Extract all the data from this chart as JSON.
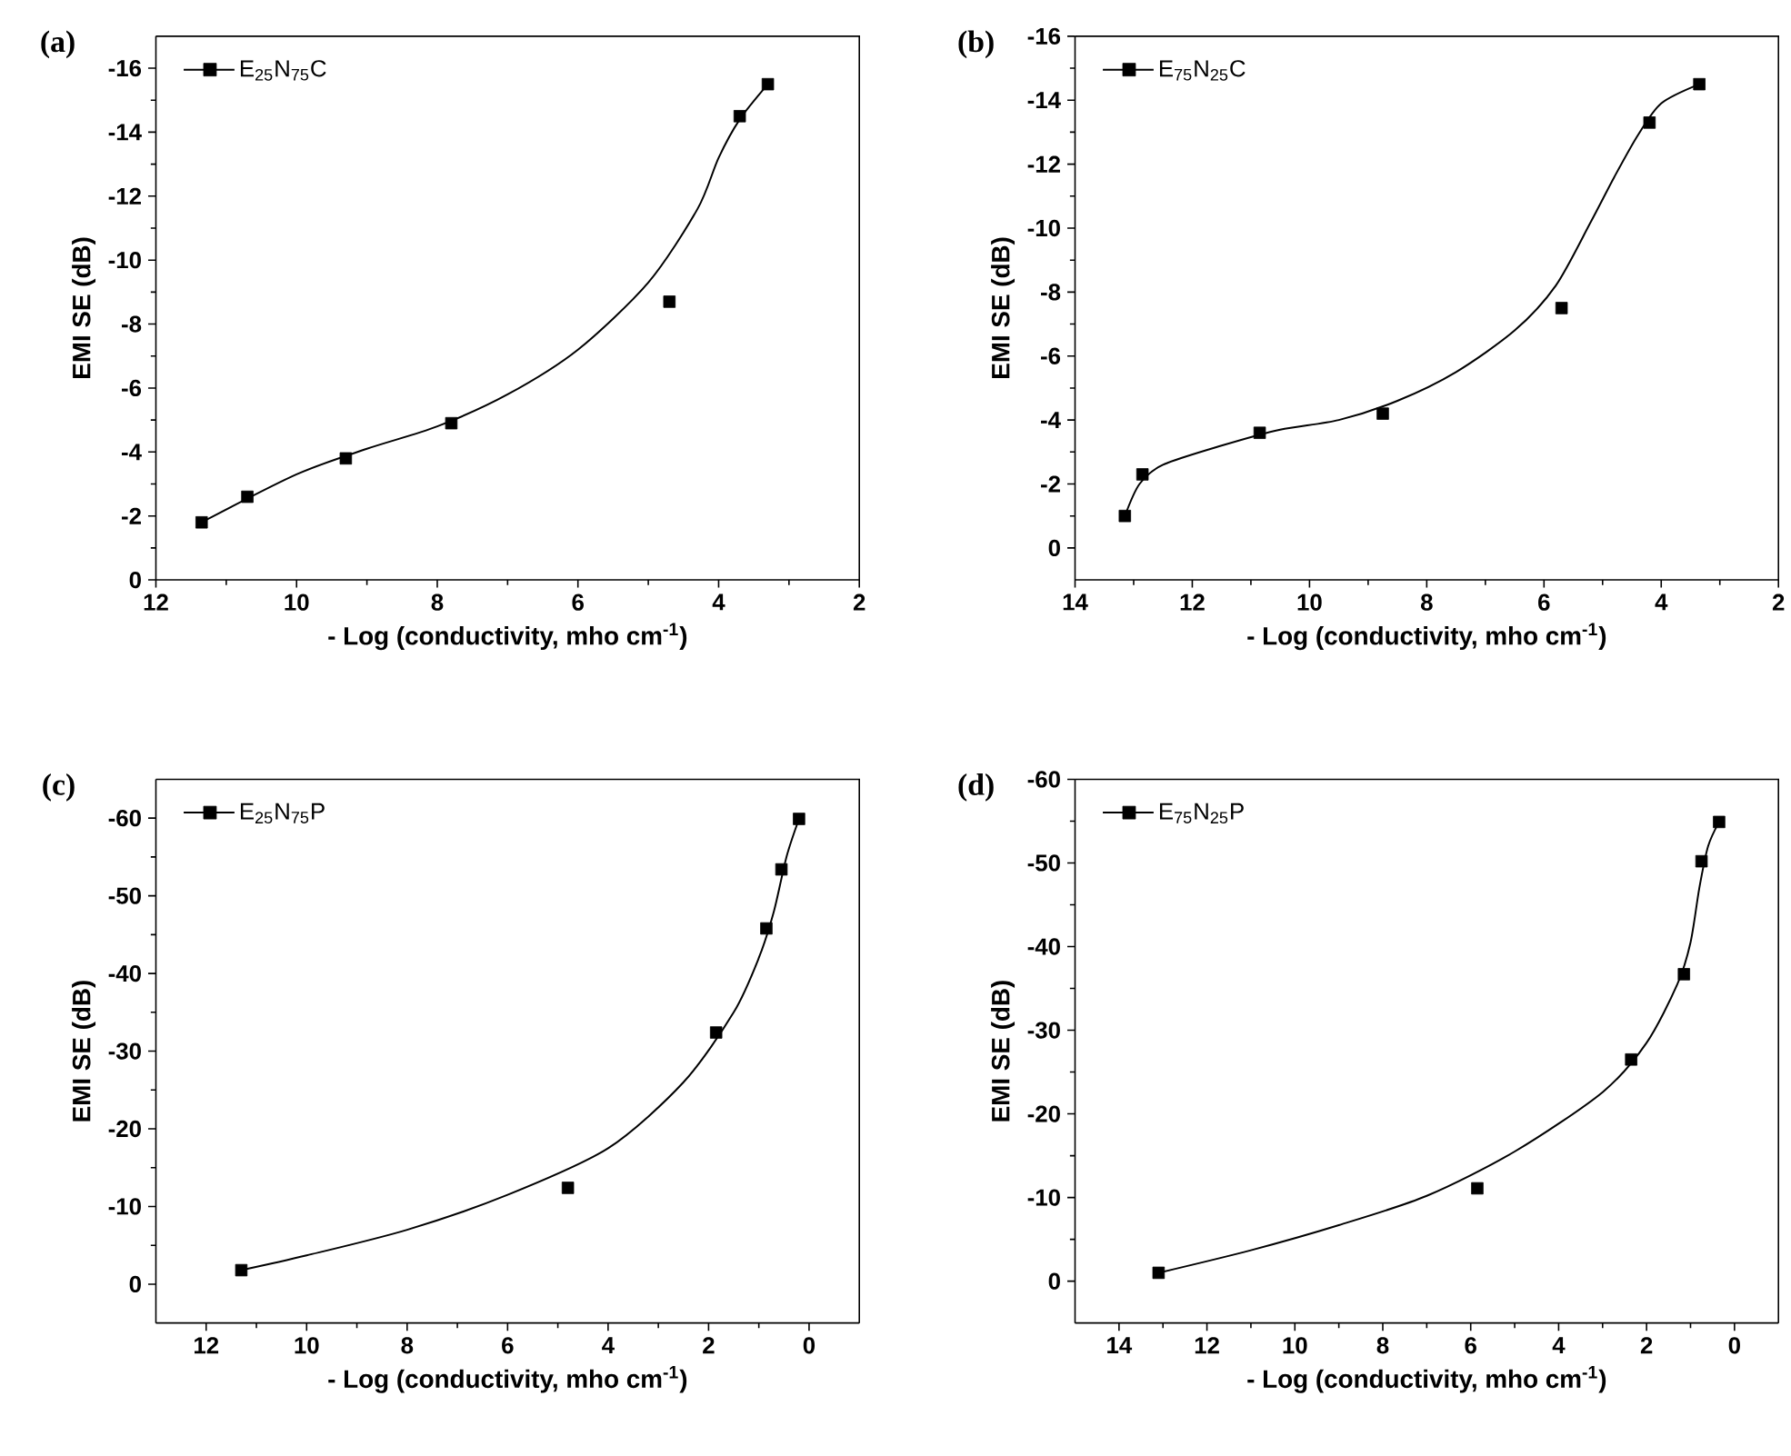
{
  "chart_data": [
    {
      "type": "scatter",
      "title": "(a)",
      "xlabel": "- Log (conductivity, mho cm$^{-1}$)",
      "ylabel": "EMI SE (dB)",
      "xlim": [
        12,
        2
      ],
      "ylim": [
        0,
        -17
      ],
      "xticks": [
        12,
        10,
        8,
        6,
        4,
        2
      ],
      "yticks": [
        0,
        -2,
        -4,
        -6,
        -8,
        -10,
        -12,
        -14,
        -16
      ],
      "legend": "top left",
      "series": [
        {
          "name": "E$_{25}$N$_{75}$C",
          "marker": "square",
          "color": "#000000",
          "x": [
            11.35,
            10.7,
            9.3,
            7.8,
            4.7,
            3.7,
            3.3
          ],
          "values": [
            -1.8,
            -2.6,
            -3.8,
            -4.9,
            -8.7,
            -14.5,
            -15.5
          ]
        },
        {
          "type": "line",
          "marker": "none",
          "color": "#000000",
          "x": [
            11.35,
            10,
            9,
            8,
            7,
            6,
            5,
            4.3,
            4,
            3.7,
            3.3
          ],
          "values": [
            -1.8,
            -3.3,
            -4.1,
            -4.8,
            -5.8,
            -7.2,
            -9.3,
            -11.6,
            -13.2,
            -14.4,
            -15.5
          ]
        }
      ]
    },
    {
      "type": "scatter",
      "title": "(b)",
      "xlabel": "- Log (conductivity, mho cm$^{-1}$)",
      "ylabel": "EMI SE (dB)",
      "xlim": [
        14,
        2
      ],
      "ylim": [
        1,
        -16
      ],
      "xticks": [
        14,
        12,
        10,
        8,
        6,
        4,
        2
      ],
      "yticks": [
        0,
        -2,
        -4,
        -6,
        -8,
        -10,
        -12,
        -14,
        -16
      ],
      "legend": "top left",
      "series": [
        {
          "name": "E$_{75}$N$_{25}$C",
          "marker": "square",
          "color": "#000000",
          "x": [
            13.15,
            12.85,
            10.85,
            8.75,
            5.7,
            4.2,
            3.35
          ],
          "values": [
            -1.0,
            -2.3,
            -3.6,
            -4.2,
            -7.5,
            -13.3,
            -14.5
          ]
        },
        {
          "type": "line",
          "marker": "none",
          "color": "#000000",
          "x": [
            13.15,
            12.9,
            12.5,
            11.5,
            10.5,
            9.5,
            8.5,
            7.5,
            6.5,
            5.8,
            5.2,
            4.8,
            4.4,
            4,
            3.35
          ],
          "values": [
            -1.0,
            -2.0,
            -2.6,
            -3.2,
            -3.7,
            -4.0,
            -4.6,
            -5.5,
            -6.8,
            -8.2,
            -10.2,
            -11.6,
            -12.9,
            -13.9,
            -14.5
          ]
        }
      ]
    },
    {
      "type": "scatter",
      "title": "(c)",
      "xlabel": "- Log (conductivity, mho cm$^{-1}$)",
      "ylabel": "EMI SE (dB)",
      "xlim": [
        13,
        -1
      ],
      "ylim": [
        5,
        -65
      ],
      "xticks": [
        12,
        10,
        8,
        6,
        4,
        2,
        0
      ],
      "yticks": [
        0,
        -10,
        -20,
        -30,
        -40,
        -50,
        -60
      ],
      "legend": "top left",
      "series": [
        {
          "name": "E$_{25}$N$_{75}$P",
          "marker": "square",
          "color": "#000000",
          "x": [
            11.3,
            4.8,
            1.85,
            0.85,
            0.55,
            0.2
          ],
          "values": [
            -1.8,
            -12.4,
            -32.4,
            -45.8,
            -53.4,
            -59.9
          ]
        },
        {
          "type": "line",
          "marker": "none",
          "color": "#000000",
          "x": [
            11.3,
            10,
            8,
            6,
            4,
            2.5,
            1.5,
            1,
            0.7,
            0.45,
            0.2
          ],
          "values": [
            -1.8,
            -3.7,
            -7,
            -11.5,
            -17.5,
            -26,
            -35,
            -42,
            -48,
            -55,
            -59.9
          ]
        }
      ]
    },
    {
      "type": "scatter",
      "title": "(d)",
      "xlabel": "- Log (conductivity, mho cm$^{-1}$)",
      "ylabel": "EMI SE (dB)",
      "xlim": [
        15,
        -1
      ],
      "ylim": [
        5,
        -60
      ],
      "xticks": [
        14,
        12,
        10,
        8,
        6,
        4,
        2,
        0
      ],
      "yticks": [
        0,
        -10,
        -20,
        -30,
        -40,
        -50,
        -60
      ],
      "legend": "top left",
      "series": [
        {
          "name": "E$_{75}$N$_{25}$P",
          "marker": "square",
          "color": "#000000",
          "x": [
            13.1,
            5.85,
            2.35,
            1.15,
            0.75,
            0.35
          ],
          "values": [
            -1.0,
            -11.1,
            -26.5,
            -36.7,
            -50.2,
            -54.9
          ]
        },
        {
          "type": "line",
          "marker": "none",
          "color": "#000000",
          "x": [
            13.1,
            11,
            9,
            7,
            5,
            3,
            2,
            1.3,
            1,
            0.8,
            0.6,
            0.35
          ],
          "values": [
            -1.0,
            -3.7,
            -6.7,
            -10.2,
            -15.5,
            -22.6,
            -28.5,
            -35.5,
            -40.5,
            -47,
            -52,
            -54.9
          ]
        }
      ]
    }
  ]
}
